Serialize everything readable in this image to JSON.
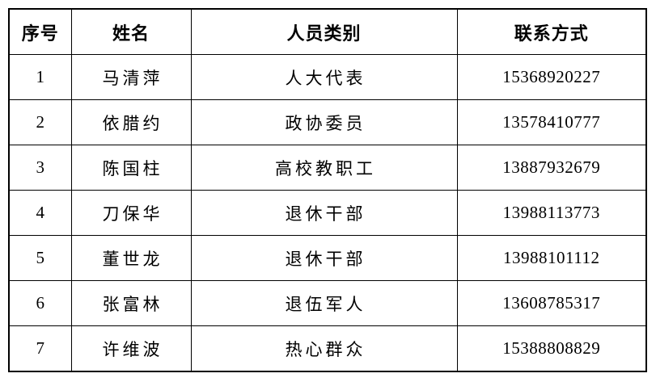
{
  "page": {
    "background_color": "#ffffff",
    "border_color": "#000000",
    "text_color": "#000000"
  },
  "table": {
    "headers": [
      "序号",
      "姓名",
      "人员类别",
      "联系方式"
    ],
    "rows": [
      {
        "no": "1",
        "name": "马清萍",
        "category": "人大代表",
        "phone": "15368920227"
      },
      {
        "no": "2",
        "name": "依腊约",
        "category": "政协委员",
        "phone": "13578410777"
      },
      {
        "no": "3",
        "name": "陈国柱",
        "category": "高校教职工",
        "phone": "13887932679"
      },
      {
        "no": "4",
        "name": "刀保华",
        "category": "退休干部",
        "phone": "13988113773"
      },
      {
        "no": "5",
        "name": "董世龙",
        "category": "退休干部",
        "phone": "13988101112"
      },
      {
        "no": "6",
        "name": "张富林",
        "category": "退伍军人",
        "phone": "13608785317"
      },
      {
        "no": "7",
        "name": "许维波",
        "category": "热心群众",
        "phone": "15388808829"
      }
    ]
  }
}
